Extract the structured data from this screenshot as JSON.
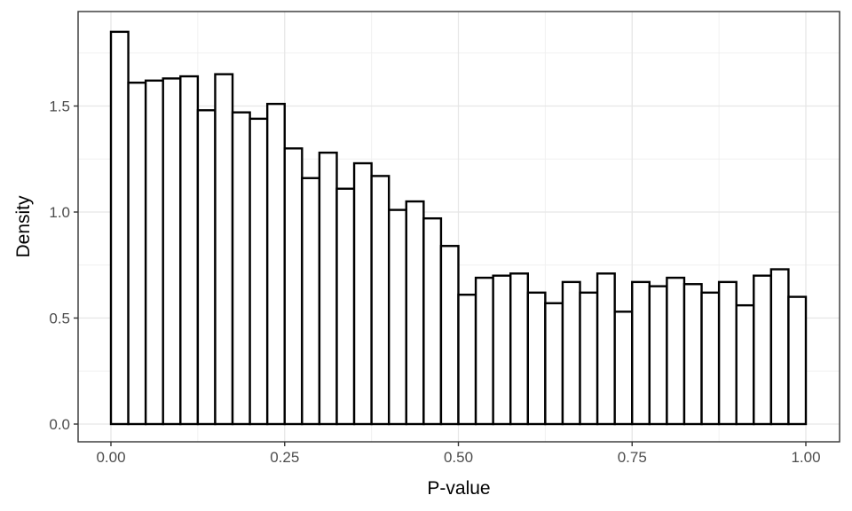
{
  "figure": {
    "kind": "ggplot-style histogram",
    "background": "#ffffff"
  },
  "chart_data": {
    "type": "bar",
    "subtype": "histogram",
    "title": "",
    "xlabel": "P-value",
    "ylabel": "Density",
    "bin_start": 0.0,
    "bin_width": 0.025,
    "n_bins": 40,
    "values": [
      1.85,
      1.61,
      1.62,
      1.63,
      1.64,
      1.48,
      1.65,
      1.47,
      1.44,
      1.51,
      1.3,
      1.16,
      1.28,
      1.11,
      1.23,
      1.17,
      1.01,
      1.05,
      0.97,
      0.84,
      0.61,
      0.69,
      0.7,
      0.71,
      0.62,
      0.57,
      0.67,
      0.62,
      0.71,
      0.53,
      0.67,
      0.65,
      0.69,
      0.66,
      0.62,
      0.67,
      0.56,
      0.7,
      0.73,
      0.6
    ],
    "x_ticks": [
      0,
      0.25,
      0.5,
      0.75,
      1.0
    ],
    "x_tick_labels": [
      "0.00",
      "0.25",
      "0.50",
      "0.75",
      "1.00"
    ],
    "x_minor_ticks": [
      0.125,
      0.375,
      0.625,
      0.875
    ],
    "y_ticks": [
      0,
      0.5,
      1.0,
      1.5
    ],
    "y_tick_labels": [
      "0.0",
      "0.5",
      "1.0",
      "1.5"
    ],
    "y_minor_ticks": [
      0.25,
      0.75,
      1.25,
      1.75
    ],
    "xlim": [
      -0.047,
      1.048
    ],
    "ylim": [
      -0.084,
      1.946
    ],
    "grid": "major+minor",
    "legend": "none",
    "colors": {
      "bar_fill": "#ffffff",
      "bar_stroke": "#000000",
      "panel_border": "#343434",
      "grid_major": "#e6e6e6",
      "grid_minor": "#f0f0f0",
      "tick_mark": "#333333",
      "tick_label": "#4d4d4d",
      "axis_title": "#000000"
    }
  }
}
